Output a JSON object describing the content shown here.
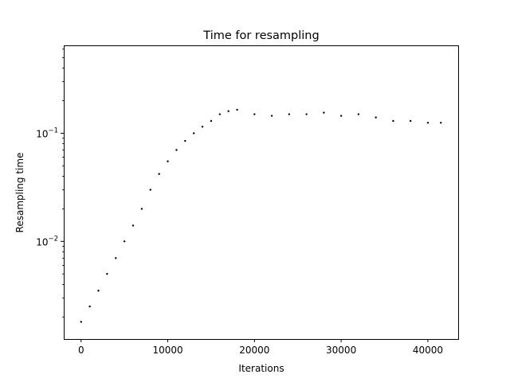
{
  "chart_data": {
    "type": "scatter",
    "title": "Time for resampling",
    "xlabel": "Iterations",
    "ylabel": "Resampling time",
    "x_scale": "linear",
    "y_scale": "log",
    "xlim": [
      -2000,
      43500
    ],
    "ylim": [
      0.00125,
      0.65
    ],
    "x_ticks": [
      {
        "value": 0,
        "label": "0"
      },
      {
        "value": 10000,
        "label": "10000"
      },
      {
        "value": 20000,
        "label": "20000"
      },
      {
        "value": 30000,
        "label": "30000"
      },
      {
        "value": 40000,
        "label": "40000"
      }
    ],
    "y_ticks": [
      {
        "value": 0.01,
        "base": "10",
        "exp": "−2"
      },
      {
        "value": 0.1,
        "base": "10",
        "exp": "−1"
      }
    ],
    "grid": false,
    "legend": "none",
    "marker_color": "#000000",
    "series": [
      {
        "x": [
          0,
          1000,
          2000,
          3000,
          4000,
          5000,
          6000,
          7000,
          8000,
          9000,
          10000,
          11000,
          12000,
          13000,
          14000,
          15000,
          16000,
          17000,
          18000,
          20000,
          22000,
          24000,
          26000,
          28000,
          30000,
          32000,
          34000,
          36000,
          38000,
          40000,
          41500
        ],
        "y": [
          0.0018,
          0.0025,
          0.0035,
          0.005,
          0.007,
          0.01,
          0.014,
          0.02,
          0.03,
          0.042,
          0.055,
          0.07,
          0.085,
          0.1,
          0.115,
          0.13,
          0.15,
          0.16,
          0.165,
          0.15,
          0.145,
          0.15,
          0.15,
          0.155,
          0.145,
          0.15,
          0.14,
          0.13,
          0.13,
          0.125,
          0.125
        ]
      }
    ]
  }
}
